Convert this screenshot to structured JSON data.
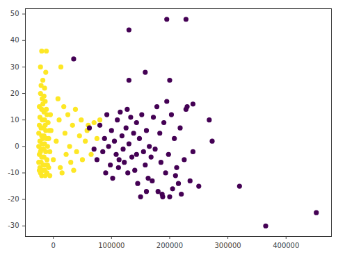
{
  "chart_data": {
    "type": "scatter",
    "xlim": [
      -48000,
      478000
    ],
    "ylim": [
      -34,
      52
    ],
    "xticks": [
      0,
      100000,
      200000,
      300000,
      400000
    ],
    "yticks": [
      -30,
      -20,
      -10,
      0,
      10,
      20,
      30,
      40,
      50
    ],
    "grid": false,
    "series": [
      {
        "color": "#fde725",
        "x": [
          -20000,
          -12000,
          -22000,
          -18000,
          -15000,
          -22000,
          -19000,
          -14000,
          -24000,
          -20000,
          -16000,
          -11000,
          -23000,
          -19000,
          -15000,
          -9000,
          -24000,
          -21000,
          -17000,
          -13000,
          -7000,
          -25000,
          -20000,
          -16000,
          -12000,
          -8000,
          -23000,
          -19000,
          -15000,
          -10000,
          -25000,
          -21000,
          -17000,
          -13000,
          -6000,
          -24000,
          -20000,
          -16000,
          -11000,
          -25000,
          -21000,
          -17000,
          -13000,
          -8000,
          -23000,
          -19000,
          -15000,
          -11000,
          -20000,
          -14000,
          -6000,
          -22000,
          -18000,
          -22000,
          -14000,
          -10000,
          -24000,
          -12000,
          -18000,
          -16000,
          -21000,
          -13000,
          -5000,
          -4000,
          0,
          5000,
          10000,
          12000,
          18000,
          20000,
          22000,
          25000,
          28000,
          30000,
          33000,
          38000,
          40000,
          45000,
          48000,
          50000,
          55000,
          58000,
          60000,
          65000,
          70000,
          75000,
          80000,
          8000,
          15000,
          35000,
          13000
        ],
        "y": [
          36,
          36,
          30,
          25,
          22,
          20,
          18,
          17,
          15,
          14,
          13,
          12,
          11,
          10,
          10,
          9,
          8,
          7,
          7,
          6,
          6,
          5,
          4,
          4,
          3,
          3,
          2,
          1,
          1,
          0,
          0,
          -1,
          -1,
          -2,
          -2,
          -3,
          -4,
          -4,
          -5,
          -6,
          -6,
          -7,
          -7,
          -8,
          -8,
          -9,
          -9,
          -10,
          -11,
          -11,
          -11,
          -10,
          3,
          -2,
          8,
          -7,
          -9,
          14,
          16,
          19,
          23,
          28,
          12,
          6,
          -5,
          2,
          10,
          -8,
          15,
          5,
          -3,
          12,
          0,
          -6,
          8,
          14,
          -2,
          4,
          10,
          -5,
          2,
          6,
          8,
          -3,
          9,
          3,
          10,
          18,
          -10,
          -9,
          30
        ]
      },
      {
        "color": "#440154",
        "x": [
          35000,
          130000,
          195000,
          228000,
          130000,
          158000,
          200000,
          240000,
          228000,
          268000,
          273000,
          320000,
          365000,
          452000,
          62000,
          75000,
          80000,
          85000,
          88000,
          90000,
          95000,
          98000,
          100000,
          102000,
          105000,
          108000,
          110000,
          112000,
          115000,
          118000,
          120000,
          122000,
          125000,
          128000,
          130000,
          133000,
          135000,
          138000,
          140000,
          143000,
          145000,
          148000,
          150000,
          152000,
          155000,
          158000,
          160000,
          163000,
          165000,
          168000,
          170000,
          172000,
          175000,
          178000,
          180000,
          183000,
          185000,
          188000,
          190000,
          193000,
          195000,
          198000,
          200000,
          203000,
          205000,
          208000,
          212000,
          215000,
          218000,
          220000,
          225000,
          230000,
          235000,
          240000,
          70000,
          92000,
          160000,
          113000,
          143000,
          187000,
          127000,
          210000,
          250000
        ],
        "y": [
          33,
          44,
          48,
          48,
          25,
          28,
          25,
          16,
          14,
          10,
          2,
          -15,
          -30,
          -25,
          7,
          -5,
          8,
          -2,
          3,
          -10,
          0,
          -7,
          6,
          -12,
          2,
          -3,
          10,
          -8,
          13,
          4,
          -1,
          -6,
          7,
          -10,
          1,
          11,
          -4,
          5,
          -9,
          9,
          -14,
          3,
          -19,
          12,
          -2,
          -7,
          6,
          -12,
          0,
          -4,
          -13,
          11,
          -1,
          15,
          -17,
          5,
          -6,
          -19,
          9,
          -10,
          17,
          -3,
          -19,
          12,
          -16,
          3,
          -8,
          -14,
          7,
          -18,
          -5,
          15,
          -13,
          -2,
          -1,
          12,
          -17,
          -5,
          -3,
          -18,
          14,
          -11,
          -15
        ]
      }
    ]
  }
}
